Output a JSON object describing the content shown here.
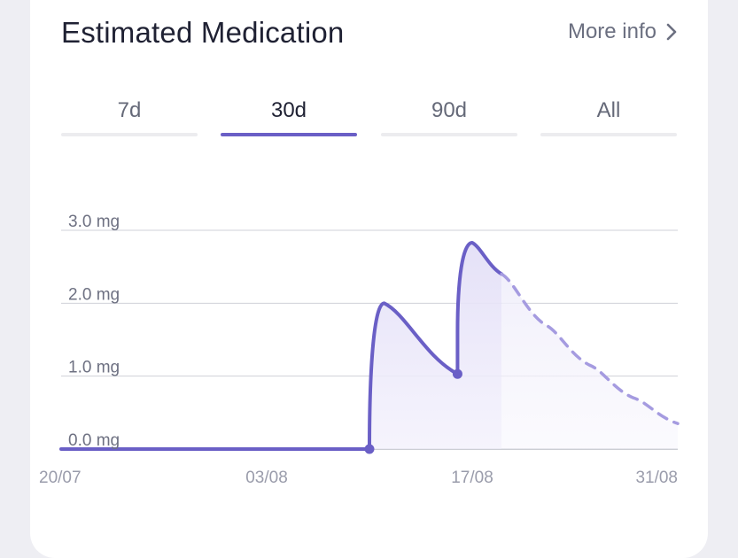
{
  "header": {
    "title": "Estimated Medication",
    "more_info_label": "More info",
    "more_info_icon": "chevron-right-icon"
  },
  "tabs": [
    {
      "label": "7d",
      "active": false
    },
    {
      "label": "30d",
      "active": true
    },
    {
      "label": "90d",
      "active": false
    },
    {
      "label": "All",
      "active": false
    }
  ],
  "colors": {
    "accent": "#6a5fc6",
    "projection": "#a59be0",
    "fill": "#e9e6f8"
  },
  "chart_data": {
    "type": "line",
    "y_tick_labels": [
      "0.0 mg",
      "1.0 mg",
      "2.0 mg",
      "3.0 mg"
    ],
    "y_ticks": [
      0,
      1,
      2,
      3
    ],
    "ylim": [
      0,
      3
    ],
    "x_tick_labels": [
      "20/07",
      "03/08",
      "17/08",
      "31/08"
    ],
    "xlim": [
      "20/07",
      "31/08"
    ],
    "grid": true,
    "series": [
      {
        "style": "solid",
        "points": [
          {
            "x": "20/07",
            "y": 0.0
          },
          {
            "x": "10/08",
            "y": 0.0,
            "marker": true
          },
          {
            "x": "11/08",
            "y": 2.0
          },
          {
            "x": "16/08",
            "y": 1.03,
            "marker": true
          },
          {
            "x": "16/08",
            "y": 1.6
          },
          {
            "x": "17/08",
            "y": 2.83
          },
          {
            "x": "19/08",
            "y": 2.4
          }
        ]
      },
      {
        "style": "dashed",
        "points": [
          {
            "x": "19/08",
            "y": 2.4
          },
          {
            "x": "22/08",
            "y": 1.7
          },
          {
            "x": "25/08",
            "y": 1.15
          },
          {
            "x": "28/08",
            "y": 0.7
          },
          {
            "x": "31/08",
            "y": 0.35
          }
        ]
      }
    ]
  }
}
